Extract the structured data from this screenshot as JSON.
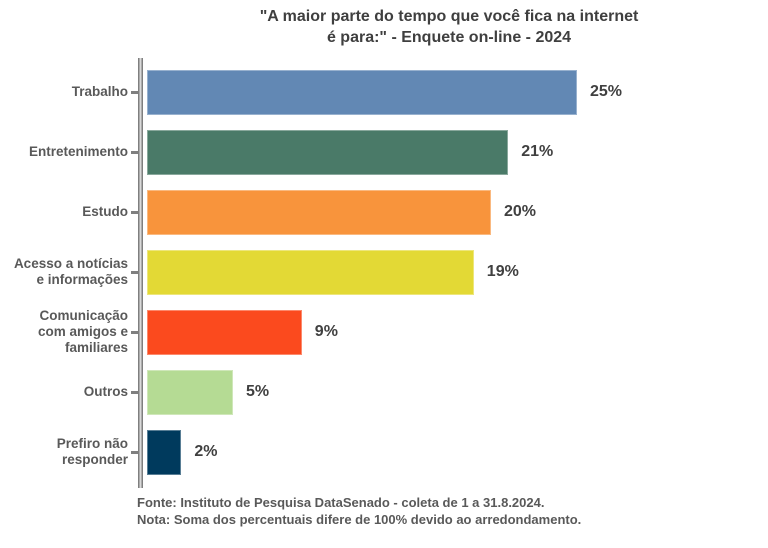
{
  "header": {
    "title_line1": "\"A maior parte do tempo que você fica na internet",
    "title_line2": "é para:\" - Enquete on-line - 2024"
  },
  "chart_data": {
    "type": "bar",
    "orientation": "horizontal",
    "title": "\"A maior parte do tempo que você fica na internet é para:\" - Enquete on-line - 2024",
    "categories": [
      "Trabalho",
      "Entretenimento",
      "Estudo",
      "Acesso a notícias e informações",
      "Comunicação com amigos e familiares",
      "Outros",
      "Prefiro não responder"
    ],
    "label_lines": [
      [
        "Trabalho"
      ],
      [
        "Entretenimento"
      ],
      [
        "Estudo"
      ],
      [
        "Acesso a notícias",
        "e informações"
      ],
      [
        "Comunicação",
        "com amigos e",
        "familiares"
      ],
      [
        "Outros"
      ],
      [
        "Prefiro não",
        "responder"
      ]
    ],
    "values": [
      25,
      21,
      20,
      19,
      9,
      5,
      2
    ],
    "value_labels": [
      "25%",
      "21%",
      "20%",
      "19%",
      "9%",
      "5%",
      "2%"
    ],
    "bar_colors": [
      "#6288b4",
      "#4a7a68",
      "#f8943c",
      "#e3d935",
      "#fb4a1e",
      "#b5db94",
      "#003a5d"
    ],
    "xlim": [
      0,
      25
    ],
    "grid": false,
    "legend": "none",
    "axis_color": "#7f7f7f",
    "label_color": "#595959",
    "value_label_color": "#404040"
  },
  "footer": {
    "source": "Fonte: Instituto de Pesquisa DataSenado - coleta de 1 a 31.8.2024.",
    "note": "Nota: Soma dos percentuais difere de 100% devido ao arredondamento."
  }
}
